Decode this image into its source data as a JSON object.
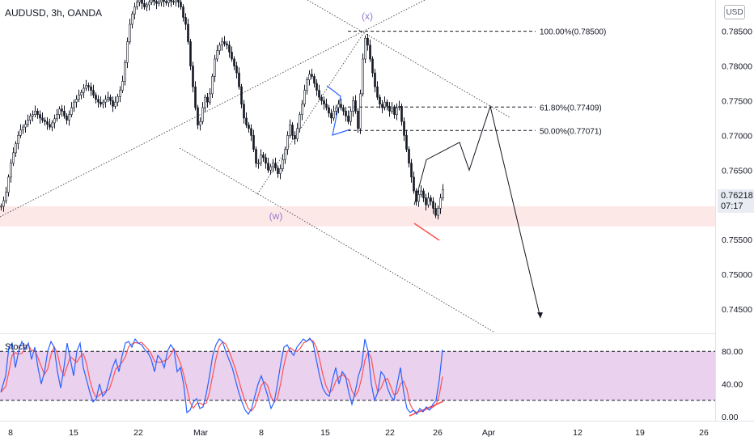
{
  "header": {
    "symbol": "AUDUSD, 3h, OANDA",
    "currency_button": "USD"
  },
  "price_tag": {
    "price": "0.76218",
    "countdown": "07:17"
  },
  "stoch_label": "Stoch",
  "annotations": {
    "wave_x": "(x)",
    "wave_w": "(w)"
  },
  "colors": {
    "candle": "#131722",
    "blue": "#2962ff",
    "red": "#ff5252",
    "purple": "#9575cd",
    "stoch_fill": "#e1bee7",
    "zone": "#fde8e8"
  },
  "chart_data": [
    {
      "type": "candlestick",
      "symbol": "AUDUSD",
      "timeframe": "3h",
      "y_axis": {
        "ticks": [
          "0.78500",
          "0.78000",
          "0.77500",
          "0.77000",
          "0.76500",
          "0.76000",
          "0.75500",
          "0.75000",
          "0.74500"
        ],
        "ylim": [
          0.7415,
          0.7895
        ]
      },
      "x_axis": {
        "ticks": [
          "8",
          "15",
          "22",
          "Mar",
          "8",
          "15",
          "22",
          "26",
          "Apr",
          "12",
          "19",
          "26"
        ]
      },
      "last_price": 0.76218,
      "path_close": [
        [
          0,
          0.7598
        ],
        [
          3,
          0.7606
        ],
        [
          6,
          0.7618
        ],
        [
          9,
          0.764
        ],
        [
          12,
          0.766
        ],
        [
          15,
          0.7675
        ],
        [
          18,
          0.7688
        ],
        [
          21,
          0.77
        ],
        [
          24,
          0.7708
        ],
        [
          27,
          0.7712
        ],
        [
          30,
          0.7716
        ],
        [
          33,
          0.7722
        ],
        [
          36,
          0.7728
        ],
        [
          39,
          0.773
        ],
        [
          42,
          0.7735
        ],
        [
          45,
          0.773
        ],
        [
          48,
          0.7725
        ],
        [
          51,
          0.7722
        ],
        [
          54,
          0.772
        ],
        [
          57,
          0.7716
        ],
        [
          60,
          0.7712
        ],
        [
          63,
          0.7718
        ],
        [
          66,
          0.7724
        ],
        [
          69,
          0.773
        ],
        [
          72,
          0.7738
        ],
        [
          75,
          0.7735
        ],
        [
          78,
          0.7728
        ],
        [
          81,
          0.7722
        ],
        [
          84,
          0.773
        ],
        [
          87,
          0.774
        ],
        [
          90,
          0.7748
        ],
        [
          93,
          0.7752
        ],
        [
          96,
          0.7758
        ],
        [
          99,
          0.7762
        ],
        [
          102,
          0.7768
        ],
        [
          105,
          0.7772
        ],
        [
          108,
          0.777
        ],
        [
          111,
          0.7765
        ],
        [
          114,
          0.7758
        ],
        [
          117,
          0.7752
        ],
        [
          120,
          0.7748
        ],
        [
          123,
          0.7745
        ],
        [
          126,
          0.7748
        ],
        [
          129,
          0.7752
        ],
        [
          132,
          0.7755
        ],
        [
          135,
          0.775
        ],
        [
          138,
          0.7742
        ],
        [
          141,
          0.7748
        ],
        [
          144,
          0.7756
        ],
        [
          147,
          0.7765
        ],
        [
          150,
          0.7778
        ],
        [
          153,
          0.7805
        ],
        [
          156,
          0.7835
        ],
        [
          159,
          0.786
        ],
        [
          162,
          0.7875
        ],
        [
          165,
          0.7885
        ],
        [
          168,
          0.7892
        ],
        [
          171,
          0.7895
        ],
        [
          174,
          0.789
        ],
        [
          177,
          0.7885
        ],
        [
          180,
          0.7888
        ],
        [
          183,
          0.7892
        ],
        [
          186,
          0.7895
        ],
        [
          189,
          0.7893
        ],
        [
          192,
          0.789
        ],
        [
          195,
          0.7892
        ],
        [
          198,
          0.7895
        ],
        [
          201,
          0.7893
        ],
        [
          204,
          0.7891
        ],
        [
          207,
          0.7895
        ],
        [
          210,
          0.7893
        ],
        [
          213,
          0.7892
        ],
        [
          216,
          0.7895
        ],
        [
          219,
          0.7892
        ],
        [
          222,
          0.7885
        ],
        [
          225,
          0.787
        ],
        [
          228,
          0.786
        ],
        [
          231,
          0.7835
        ],
        [
          234,
          0.78
        ],
        [
          237,
          0.777
        ],
        [
          240,
          0.774
        ],
        [
          243,
          0.7715
        ],
        [
          246,
          0.772
        ],
        [
          249,
          0.774
        ],
        [
          252,
          0.7755
        ],
        [
          255,
          0.7748
        ],
        [
          258,
          0.776
        ],
        [
          261,
          0.7785
        ],
        [
          264,
          0.781
        ],
        [
          267,
          0.7822
        ],
        [
          270,
          0.783
        ],
        [
          273,
          0.7835
        ],
        [
          276,
          0.7832
        ],
        [
          279,
          0.783
        ],
        [
          282,
          0.782
        ],
        [
          285,
          0.781
        ],
        [
          288,
          0.78
        ],
        [
          291,
          0.779
        ],
        [
          294,
          0.777
        ],
        [
          297,
          0.7745
        ],
        [
          300,
          0.7725
        ],
        [
          303,
          0.7715
        ],
        [
          306,
          0.771
        ],
        [
          309,
          0.77
        ],
        [
          312,
          0.768
        ],
        [
          315,
          0.766
        ],
        [
          318,
          0.766
        ],
        [
          321,
          0.7672
        ],
        [
          324,
          0.7668
        ],
        [
          327,
          0.766
        ],
        [
          330,
          0.765
        ],
        [
          333,
          0.7655
        ],
        [
          336,
          0.766
        ],
        [
          339,
          0.7653
        ],
        [
          342,
          0.7645
        ],
        [
          345,
          0.7652
        ],
        [
          348,
          0.7665
        ],
        [
          351,
          0.768
        ],
        [
          354,
          0.77
        ],
        [
          357,
          0.7715
        ],
        [
          360,
          0.77
        ],
        [
          363,
          0.7695
        ],
        [
          366,
          0.771
        ],
        [
          369,
          0.773
        ],
        [
          372,
          0.7745
        ],
        [
          375,
          0.7765
        ],
        [
          378,
          0.778
        ],
        [
          381,
          0.7788
        ],
        [
          384,
          0.7785
        ],
        [
          387,
          0.7775
        ],
        [
          390,
          0.7765
        ],
        [
          393,
          0.7755
        ],
        [
          396,
          0.775
        ],
        [
          399,
          0.7745
        ],
        [
          402,
          0.774
        ],
        [
          405,
          0.7732
        ],
        [
          408,
          0.7725
        ],
        [
          411,
          0.7735
        ],
        [
          414,
          0.774
        ],
        [
          417,
          0.7745
        ],
        [
          420,
          0.774
        ],
        [
          423,
          0.7735
        ],
        [
          426,
          0.7728
        ],
        [
          429,
          0.772
        ],
        [
          432,
          0.7735
        ],
        [
          435,
          0.775
        ],
        [
          438,
          0.7735
        ],
        [
          441,
          0.771
        ],
        [
          444,
          0.776
        ],
        [
          447,
          0.781
        ],
        [
          450,
          0.784
        ],
        [
          453,
          0.783
        ],
        [
          456,
          0.781
        ],
        [
          459,
          0.779
        ],
        [
          462,
          0.777
        ],
        [
          465,
          0.7755
        ],
        [
          468,
          0.7745
        ],
        [
          471,
          0.774
        ],
        [
          474,
          0.7748
        ],
        [
          477,
          0.7742
        ],
        [
          480,
          0.7735
        ],
        [
          483,
          0.774
        ],
        [
          486,
          0.773
        ],
        [
          489,
          0.774
        ],
        [
          492,
          0.7742
        ],
        [
          495,
          0.772
        ],
        [
          498,
          0.77
        ],
        [
          501,
          0.768
        ],
        [
          504,
          0.766
        ],
        [
          507,
          0.764
        ],
        [
          510,
          0.762
        ],
        [
          513,
          0.7605
        ],
        [
          516,
          0.7615
        ],
        [
          519,
          0.762
        ],
        [
          522,
          0.761
        ],
        [
          525,
          0.76
        ],
        [
          528,
          0.761
        ],
        [
          531,
          0.7605
        ],
        [
          534,
          0.7595
        ],
        [
          537,
          0.7585
        ],
        [
          540,
          0.7595
        ],
        [
          543,
          0.761
        ],
        [
          546,
          0.7622
        ]
      ]
    },
    {
      "type": "line",
      "name": "Stoch",
      "y_axis": {
        "ticks": [
          "80.00",
          "40.00",
          "0.00"
        ],
        "ylim": [
          -5,
          100
        ],
        "bands": [
          20,
          80
        ]
      },
      "k": [
        [
          0,
          30
        ],
        [
          6,
          50
        ],
        [
          10,
          85
        ],
        [
          14,
          90
        ],
        [
          18,
          60
        ],
        [
          22,
          80
        ],
        [
          26,
          92
        ],
        [
          30,
          82
        ],
        [
          34,
          90
        ],
        [
          38,
          70
        ],
        [
          42,
          85
        ],
        [
          46,
          60
        ],
        [
          50,
          40
        ],
        [
          54,
          55
        ],
        [
          58,
          80
        ],
        [
          62,
          92
        ],
        [
          66,
          85
        ],
        [
          70,
          55
        ],
        [
          74,
          35
        ],
        [
          78,
          60
        ],
        [
          82,
          90
        ],
        [
          86,
          70
        ],
        [
          90,
          50
        ],
        [
          94,
          80
        ],
        [
          98,
          90
        ],
        [
          102,
          60
        ],
        [
          106,
          45
        ],
        [
          110,
          30
        ],
        [
          114,
          18
        ],
        [
          118,
          22
        ],
        [
          122,
          40
        ],
        [
          126,
          25
        ],
        [
          130,
          30
        ],
        [
          134,
          45
        ],
        [
          138,
          60
        ],
        [
          142,
          70
        ],
        [
          146,
          55
        ],
        [
          150,
          75
        ],
        [
          154,
          90
        ],
        [
          158,
          92
        ],
        [
          162,
          85
        ],
        [
          166,
          95
        ],
        [
          170,
          90
        ],
        [
          174,
          88
        ],
        [
          178,
          82
        ],
        [
          182,
          78
        ],
        [
          186,
          70
        ],
        [
          190,
          55
        ],
        [
          194,
          75
        ],
        [
          198,
          70
        ],
        [
          202,
          60
        ],
        [
          206,
          80
        ],
        [
          210,
          88
        ],
        [
          214,
          82
        ],
        [
          218,
          55
        ],
        [
          222,
          60
        ],
        [
          226,
          40
        ],
        [
          230,
          5
        ],
        [
          234,
          8
        ],
        [
          238,
          18
        ],
        [
          242,
          22
        ],
        [
          246,
          10
        ],
        [
          250,
          12
        ],
        [
          254,
          28
        ],
        [
          258,
          50
        ],
        [
          262,
          75
        ],
        [
          266,
          88
        ],
        [
          270,
          95
        ],
        [
          274,
          92
        ],
        [
          278,
          80
        ],
        [
          282,
          70
        ],
        [
          286,
          60
        ],
        [
          290,
          45
        ],
        [
          294,
          30
        ],
        [
          298,
          18
        ],
        [
          302,
          8
        ],
        [
          306,
          3
        ],
        [
          310,
          10
        ],
        [
          314,
          25
        ],
        [
          318,
          40
        ],
        [
          322,
          50
        ],
        [
          326,
          38
        ],
        [
          330,
          25
        ],
        [
          334,
          10
        ],
        [
          338,
          18
        ],
        [
          342,
          40
        ],
        [
          346,
          65
        ],
        [
          350,
          85
        ],
        [
          354,
          88
        ],
        [
          358,
          80
        ],
        [
          362,
          75
        ],
        [
          366,
          85
        ],
        [
          370,
          90
        ],
        [
          374,
          95
        ],
        [
          378,
          92
        ],
        [
          382,
          96
        ],
        [
          386,
          90
        ],
        [
          390,
          70
        ],
        [
          394,
          50
        ],
        [
          398,
          35
        ],
        [
          402,
          28
        ],
        [
          406,
          25
        ],
        [
          410,
          45
        ],
        [
          414,
          60
        ],
        [
          418,
          40
        ],
        [
          422,
          55
        ],
        [
          426,
          50
        ],
        [
          430,
          30
        ],
        [
          434,
          15
        ],
        [
          438,
          30
        ],
        [
          442,
          50
        ],
        [
          446,
          62
        ],
        [
          450,
          95
        ],
        [
          454,
          80
        ],
        [
          458,
          40
        ],
        [
          462,
          20
        ],
        [
          466,
          30
        ],
        [
          470,
          55
        ],
        [
          474,
          50
        ],
        [
          478,
          35
        ],
        [
          482,
          25
        ],
        [
          486,
          20
        ],
        [
          490,
          40
        ],
        [
          494,
          60
        ],
        [
          498,
          30
        ],
        [
          502,
          10
        ],
        [
          506,
          5
        ],
        [
          510,
          8
        ],
        [
          514,
          3
        ],
        [
          518,
          10
        ],
        [
          522,
          6
        ],
        [
          526,
          12
        ],
        [
          530,
          8
        ],
        [
          534,
          15
        ],
        [
          538,
          20
        ],
        [
          542,
          45
        ],
        [
          546,
          82
        ]
      ]
    }
  ],
  "fib_levels": [
    {
      "label": "100.00%(0.78500)",
      "price": 0.785
    },
    {
      "label": "61.80%(0.77409)",
      "price": 0.77409
    },
    {
      "label": "50.00%(0.77071)",
      "price": 0.77071
    }
  ],
  "projection_path": [
    [
      "Mar 23",
      0.76
    ],
    [
      "Mar 24",
      0.7665
    ],
    [
      "Mar 26",
      0.769
    ],
    [
      "Mar 28",
      0.765
    ],
    [
      "Apr 1",
      0.7742
    ],
    [
      "Apr 8",
      0.7437
    ]
  ]
}
